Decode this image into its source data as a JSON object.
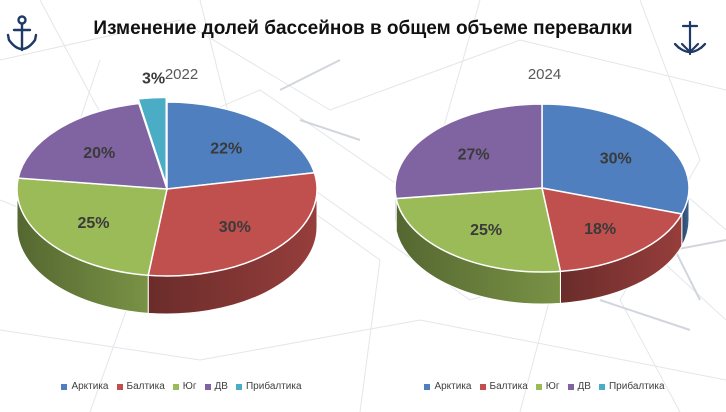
{
  "title": "Изменение долей бассейнов в общем объеме перевалки",
  "logos": {
    "left": "anchor-icon",
    "right": "anchor-icon"
  },
  "colors": {
    "Арктика": "#4F7FBE",
    "Балтика": "#C0504D",
    "Юг": "#9BBB59",
    "ДВ": "#8064A2",
    "Прибалтика": "#4BACC6"
  },
  "chart_data": [
    {
      "type": "pie",
      "title": "2022",
      "categories": [
        "Арктика",
        "Балтика",
        "Юг",
        "ДВ",
        "Прибалтика"
      ],
      "values": [
        22,
        30,
        25,
        20,
        3
      ],
      "labels": [
        "22%",
        "30%",
        "25%",
        "20%",
        "3%"
      ],
      "legend_position": "bottom"
    },
    {
      "type": "pie",
      "title": "2024",
      "categories": [
        "Арктика",
        "Балтика",
        "Юг",
        "ДВ",
        "Прибалтика"
      ],
      "values": [
        30,
        18,
        25,
        27,
        0
      ],
      "labels": [
        "30%",
        "18%",
        "25%",
        "27%",
        ""
      ],
      "legend_position": "bottom"
    }
  ]
}
